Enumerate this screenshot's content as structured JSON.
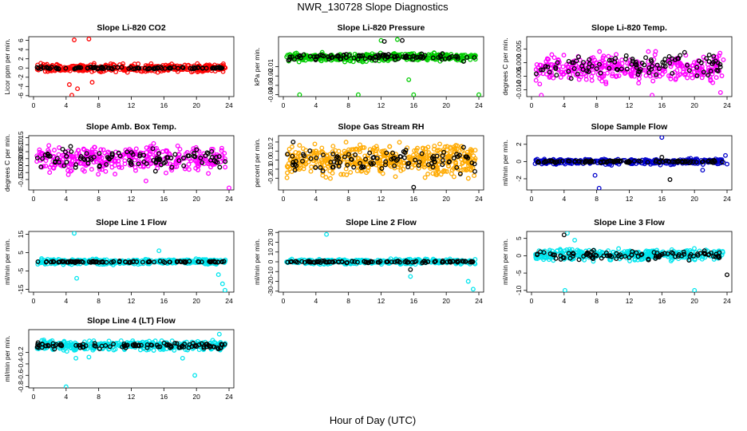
{
  "figure": {
    "title": "NWR_130728  Slope Diagnostics",
    "xlabel": "Hour of Day (UTC)"
  },
  "chart_data": [
    {
      "type": "scatter",
      "title": "Slope Li-820 CO2",
      "ylabel": "Licor ppm per min.",
      "xlim": [
        0,
        24
      ],
      "ylim": [
        -6.2,
        6.8
      ],
      "xticks": [
        0,
        4,
        8,
        12,
        16,
        20,
        24
      ],
      "yticks": [
        -6,
        -4,
        -2,
        0,
        2,
        4,
        6
      ],
      "ytick_labels": [
        "-6",
        "-4",
        "-2",
        "0",
        "2",
        "4",
        "6"
      ],
      "colors": {
        "primary": "#ff0000",
        "secondary": "#000000"
      },
      "series": [
        {
          "color": "#ff0000",
          "center": 0,
          "spread": 1.2,
          "n": 380,
          "outliers": [
            [
              5.0,
              6.1
            ],
            [
              6.8,
              6.3
            ],
            [
              4.7,
              -5.9
            ],
            [
              4.4,
              -3.6
            ],
            [
              7.2,
              -3.1
            ],
            [
              5.4,
              -4.5
            ]
          ]
        },
        {
          "color": "#000000",
          "center": 0,
          "spread": 0.35,
          "n": 100,
          "outliers": []
        }
      ]
    },
    {
      "type": "scatter",
      "title": "Slope Li-820 Pressure",
      "ylabel": "kPa per min.",
      "xlim": [
        0,
        24
      ],
      "ylim": [
        -0.042,
        0.022
      ],
      "xticks": [
        0,
        4,
        8,
        12,
        16,
        20,
        24
      ],
      "yticks": [
        -0.04,
        -0.03,
        -0.02,
        -0.01
      ],
      "ytick_labels": [
        "-0.04",
        "-0.03",
        "-0.02",
        "-0.01"
      ],
      "colors": {
        "primary": "#00cc00",
        "secondary": "#000000"
      },
      "series": [
        {
          "color": "#00cc00",
          "center": 0,
          "spread": 0.006,
          "n": 380,
          "outliers": [
            [
              2.0,
              -0.04
            ],
            [
              9.2,
              -0.04
            ],
            [
              16.0,
              -0.04
            ],
            [
              24.0,
              -0.04
            ],
            [
              15.4,
              -0.024
            ],
            [
              12.0,
              0.018
            ],
            [
              14.0,
              0.019
            ]
          ]
        },
        {
          "color": "#000000",
          "center": 0,
          "spread": 0.005,
          "n": 100,
          "outliers": [
            [
              12.4,
              0.017
            ],
            [
              14.6,
              0.018
            ]
          ]
        }
      ]
    },
    {
      "type": "scatter",
      "title": "Slope Li-820 Temp.",
      "ylabel": "degrees C per min.",
      "xlim": [
        0,
        24
      ],
      "ylim": [
        -0.0125,
        0.0095
      ],
      "xticks": [
        0,
        4,
        8,
        12,
        16,
        20,
        24
      ],
      "yticks": [
        -0.01,
        -0.005,
        0,
        0.005
      ],
      "ytick_labels": [
        "-0.010",
        "-0.005",
        "0.000",
        "0.005"
      ],
      "colors": {
        "primary": "#ff00ff",
        "secondary": "#000000"
      },
      "series": [
        {
          "color": "#ff00ff",
          "center": -0.002,
          "spread": 0.007,
          "n": 360,
          "outliers": [
            [
              1.2,
              -0.012
            ],
            [
              14.8,
              -0.012
            ],
            [
              23.2,
              -0.011
            ]
          ]
        },
        {
          "color": "#000000",
          "center": -0.001,
          "spread": 0.006,
          "n": 100,
          "outliers": []
        }
      ]
    },
    {
      "type": "scatter",
      "title": "Slope Amb. Box Temp.",
      "ylabel": "degrees C per min.",
      "xlim": [
        0,
        24
      ],
      "ylim": [
        -0.225,
        0.165
      ],
      "xticks": [
        0,
        4,
        8,
        12,
        16,
        20,
        24
      ],
      "yticks": [
        -0.15,
        -0.1,
        -0.05,
        0,
        0.05,
        0.1,
        0.15
      ],
      "ytick_labels": [
        "-0.15",
        "-0.10",
        "-0.05",
        "0.00",
        "0.05",
        "0.10",
        "0.15"
      ],
      "colors": {
        "primary": "#ff00ff",
        "secondary": "#000000"
      },
      "series": [
        {
          "color": "#ff00ff",
          "center": 0,
          "spread": 0.13,
          "n": 360,
          "outliers": [
            [
              24.0,
              -0.21
            ],
            [
              13.8,
              -0.16
            ]
          ]
        },
        {
          "color": "#000000",
          "center": 0,
          "spread": 0.1,
          "n": 100,
          "outliers": []
        }
      ]
    },
    {
      "type": "scatter",
      "title": "Slope Gas Stream RH",
      "ylabel": "percent per min.",
      "xlim": [
        0,
        24
      ],
      "ylim": [
        -0.33,
        0.27
      ],
      "xticks": [
        0,
        4,
        8,
        12,
        16,
        20,
        24
      ],
      "yticks": [
        -0.2,
        -0.1,
        0,
        0.1,
        0.2
      ],
      "ytick_labels": [
        "-0.2",
        "-0.1",
        "0.0",
        "0.1",
        "0.2"
      ],
      "colors": {
        "primary": "#ffaa00",
        "secondary": "#000000"
      },
      "series": [
        {
          "color": "#ffaa00",
          "center": 0,
          "spread": 0.24,
          "n": 480,
          "outliers": []
        },
        {
          "color": "#000000",
          "center": 0,
          "spread": 0.18,
          "n": 100,
          "outliers": [
            [
              16.0,
              -0.3
            ],
            [
              1.2,
              0.2
            ]
          ]
        }
      ]
    },
    {
      "type": "scatter",
      "title": "Slope Sample Flow",
      "ylabel": "ml/min per min.",
      "xlim": [
        0,
        24
      ],
      "ylim": [
        -3.3,
        3.0
      ],
      "xticks": [
        0,
        4,
        8,
        12,
        16,
        20,
        24
      ],
      "yticks": [
        -2,
        0,
        2
      ],
      "ytick_labels": [
        "-2",
        "0",
        "2"
      ],
      "colors": {
        "primary": "#0000cc",
        "secondary": "#000000"
      },
      "series": [
        {
          "color": "#0000cc",
          "center": 0,
          "spread": 0.45,
          "n": 300,
          "outliers": [
            [
              8.3,
              -3.1
            ],
            [
              7.8,
              -1.6
            ],
            [
              16.0,
              2.8
            ],
            [
              23.8,
              0.7
            ],
            [
              24.0,
              -0.3
            ],
            [
              21.0,
              -1.0
            ]
          ]
        },
        {
          "color": "#000000",
          "center": 0,
          "spread": 0.2,
          "n": 100,
          "outliers": [
            [
              17.0,
              -2.1
            ],
            [
              16.0,
              0.5
            ]
          ]
        }
      ]
    },
    {
      "type": "scatter",
      "title": "Slope Line 1 Flow",
      "ylabel": "ml/min per min.",
      "xlim": [
        0,
        24
      ],
      "ylim": [
        -16.5,
        16.5
      ],
      "xticks": [
        0,
        4,
        8,
        12,
        16,
        20,
        24
      ],
      "yticks": [
        -15,
        -5,
        5,
        15
      ],
      "ytick_labels": [
        "-15",
        "-5",
        "5",
        "15"
      ],
      "colors": {
        "primary": "#00e5ee",
        "secondary": "#000000"
      },
      "series": [
        {
          "color": "#00e5ee",
          "center": 0,
          "spread": 2.0,
          "n": 340,
          "outliers": [
            [
              5.0,
              15.5
            ],
            [
              5.3,
              -9.0
            ],
            [
              15.4,
              6.0
            ],
            [
              22.7,
              -7.0
            ],
            [
              23.2,
              -12.0
            ],
            [
              23.5,
              -15.5
            ]
          ]
        },
        {
          "color": "#000000",
          "center": 0,
          "spread": 0.6,
          "n": 100,
          "outliers": []
        }
      ]
    },
    {
      "type": "scatter",
      "title": "Slope Line 2 Flow",
      "ylabel": "ml/min per min.",
      "xlim": [
        0,
        24
      ],
      "ylim": [
        -31,
        31
      ],
      "xticks": [
        0,
        4,
        8,
        12,
        16,
        20,
        24
      ],
      "yticks": [
        -30,
        -20,
        -10,
        0,
        10,
        20,
        30
      ],
      "ytick_labels": [
        "-30",
        "-20",
        "-10",
        "0",
        "10",
        "20",
        "30"
      ],
      "colors": {
        "primary": "#00e5ee",
        "secondary": "#000000"
      },
      "series": [
        {
          "color": "#00e5ee",
          "center": 0,
          "spread": 3.5,
          "n": 340,
          "outliers": [
            [
              5.3,
              28.0
            ],
            [
              15.6,
              -15.0
            ],
            [
              22.7,
              -20.0
            ],
            [
              23.3,
              -28.0
            ]
          ]
        },
        {
          "color": "#000000",
          "center": 0,
          "spread": 1.5,
          "n": 100,
          "outliers": [
            [
              15.6,
              -8.0
            ]
          ]
        }
      ]
    },
    {
      "type": "scatter",
      "title": "Slope Line 3 Flow",
      "ylabel": "ml/min per min.",
      "xlim": [
        0,
        24
      ],
      "ylim": [
        -10.5,
        7.0
      ],
      "xticks": [
        0,
        4,
        8,
        12,
        16,
        20,
        24
      ],
      "yticks": [
        -10,
        -5,
        0,
        5
      ],
      "ytick_labels": [
        "-10",
        "-5",
        "0",
        "5"
      ],
      "colors": {
        "primary": "#00e5ee",
        "secondary": "#000000"
      },
      "series": [
        {
          "color": "#00e5ee",
          "center": 0.3,
          "spread": 2.2,
          "n": 360,
          "outliers": [
            [
              4.1,
              -10.0
            ],
            [
              20.0,
              -10.0
            ],
            [
              4.4,
              6.5
            ],
            [
              5.3,
              4.5
            ]
          ]
        },
        {
          "color": "#000000",
          "center": 0.2,
          "spread": 1.8,
          "n": 100,
          "outliers": [
            [
              24.0,
              -5.5
            ],
            [
              4.0,
              6.0
            ]
          ]
        }
      ]
    },
    {
      "type": "scatter",
      "title": "Slope Line 4 (LT) Flow",
      "ylabel": "ml/min per min.",
      "xlim": [
        0,
        24
      ],
      "ylim": [
        -0.82,
        0.2
      ],
      "xticks": [
        0,
        4,
        8,
        12,
        16,
        20,
        24
      ],
      "yticks": [
        -0.8,
        -0.6,
        -0.4,
        -0.2
      ],
      "ytick_labels": [
        "-0.8",
        "-0.6",
        "-0.4",
        "-0.2"
      ],
      "colors": {
        "primary": "#00e5ee",
        "secondary": "#000000"
      },
      "series": [
        {
          "color": "#00e5ee",
          "center": -0.08,
          "spread": 0.12,
          "n": 380,
          "outliers": [
            [
              4.0,
              -0.8
            ],
            [
              19.8,
              -0.6
            ],
            [
              5.2,
              -0.3
            ],
            [
              6.8,
              -0.28
            ],
            [
              18.3,
              -0.3
            ],
            [
              22.8,
              0.12
            ]
          ]
        },
        {
          "color": "#000000",
          "center": -0.08,
          "spread": 0.07,
          "n": 100,
          "outliers": []
        }
      ]
    }
  ]
}
